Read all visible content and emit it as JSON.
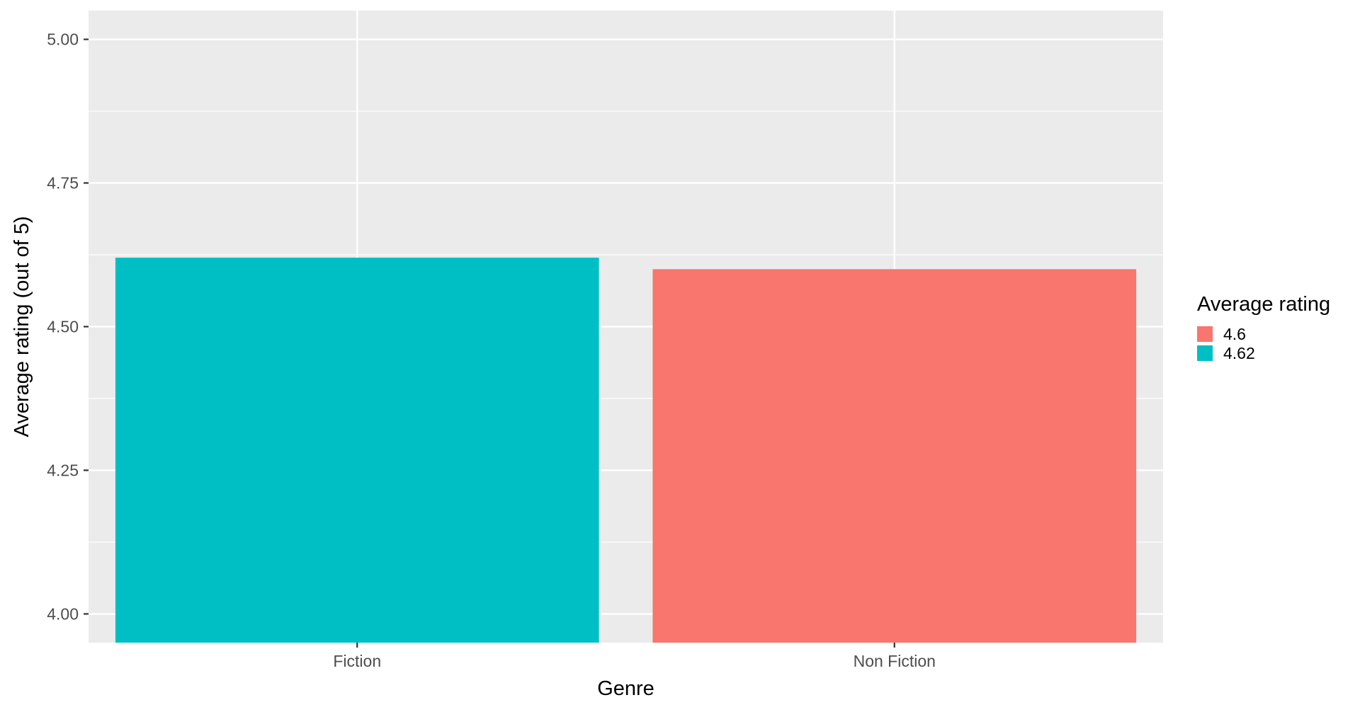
{
  "chart_data": {
    "type": "bar",
    "title": "",
    "xlabel": "Genre",
    "ylabel": "Average rating (out of 5)",
    "categories": [
      "Fiction",
      "Non Fiction"
    ],
    "values": [
      4.62,
      4.6
    ],
    "bar_colors": [
      "#00BFC4",
      "#F8766D"
    ],
    "ylim": [
      3.95,
      5.05
    ],
    "y_ticks": [
      4.0,
      4.25,
      4.5,
      4.75,
      5.0
    ],
    "y_tick_labels": [
      "4.00",
      "4.25",
      "4.50",
      "4.75",
      "5.00"
    ],
    "grid": true,
    "panel_background": "#EBEBEB",
    "grid_color": "#FFFFFF",
    "legend": {
      "title": "Average rating",
      "placement": "right",
      "entries": [
        {
          "label": "4.6",
          "color": "#F8766D"
        },
        {
          "label": "4.62",
          "color": "#00BFC4"
        }
      ]
    }
  }
}
